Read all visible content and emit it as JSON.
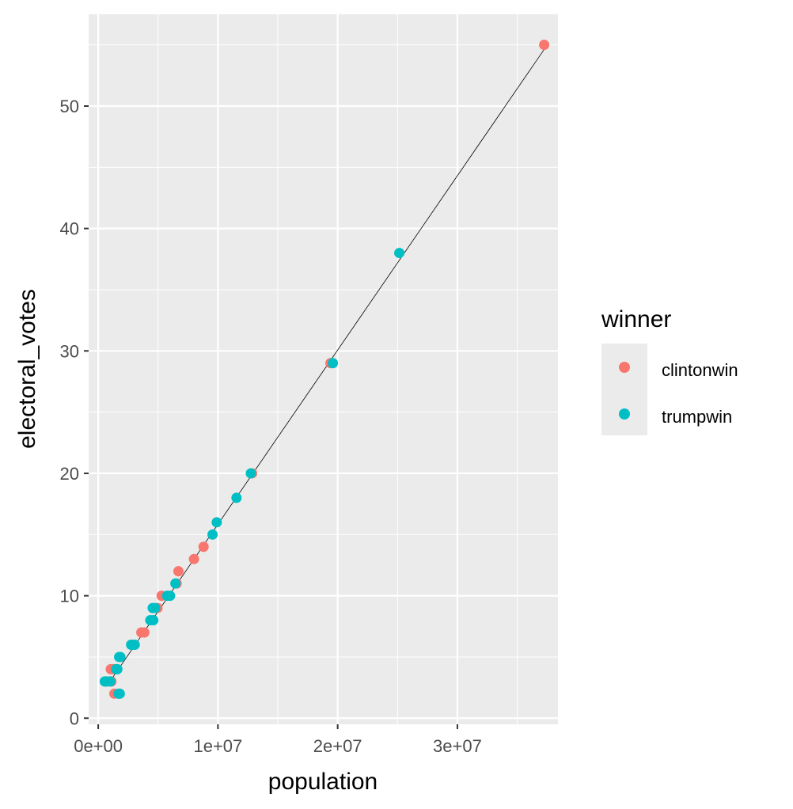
{
  "chart_data": {
    "type": "scatter",
    "xlabel": "population",
    "ylabel": "electoral_votes",
    "xlim": [
      -800000,
      38400000
    ],
    "ylim": [
      -0.5,
      57.5
    ],
    "x_ticks": [
      {
        "value": 0,
        "label": "0e+00"
      },
      {
        "value": 10000000,
        "label": "1e+07"
      },
      {
        "value": 20000000,
        "label": "2e+07"
      },
      {
        "value": 30000000,
        "label": "3e+07"
      }
    ],
    "y_ticks": [
      {
        "value": 0,
        "label": "0"
      },
      {
        "value": 10,
        "label": "10"
      },
      {
        "value": 20,
        "label": "20"
      },
      {
        "value": 30,
        "label": "30"
      },
      {
        "value": 40,
        "label": "40"
      },
      {
        "value": 50,
        "label": "50"
      }
    ],
    "grid": true,
    "legend": {
      "title": "winner",
      "position": "right",
      "entries": [
        {
          "label": "clintonwin",
          "color": "#F8766D"
        },
        {
          "label": "trumpwin",
          "color": "#00BFC4"
        }
      ]
    },
    "fit_line": {
      "x": [
        700000,
        37300000
      ],
      "y": [
        2.6,
        54.7
      ],
      "color": "#000000"
    },
    "series": [
      {
        "name": "clintonwin",
        "color": "#F8766D",
        "points": [
          [
            37250000,
            55
          ],
          [
            19400000,
            29
          ],
          [
            12850000,
            20
          ],
          [
            8800000,
            14
          ],
          [
            8000000,
            13
          ],
          [
            6700000,
            12
          ],
          [
            6550000,
            11
          ],
          [
            5300000,
            10
          ],
          [
            4950000,
            9
          ],
          [
            3850000,
            7
          ],
          [
            3600000,
            7
          ],
          [
            1300000,
            4
          ],
          [
            1050000,
            4
          ],
          [
            1350000,
            2
          ],
          [
            600000,
            3
          ],
          [
            700000,
            3
          ],
          [
            1100000,
            3
          ],
          [
            1750000,
            2
          ]
        ]
      },
      {
        "name": "trumpwin",
        "color": "#00BFC4",
        "points": [
          [
            25150000,
            38
          ],
          [
            19600000,
            29
          ],
          [
            12750000,
            20
          ],
          [
            11550000,
            18
          ],
          [
            9900000,
            16
          ],
          [
            9550000,
            15
          ],
          [
            6450000,
            11
          ],
          [
            6000000,
            10
          ],
          [
            5750000,
            10
          ],
          [
            4750000,
            9
          ],
          [
            4550000,
            9
          ],
          [
            4600000,
            8
          ],
          [
            4350000,
            8
          ],
          [
            3050000,
            6
          ],
          [
            2900000,
            6
          ],
          [
            2750000,
            6
          ],
          [
            1850000,
            5
          ],
          [
            1750000,
            5
          ],
          [
            1500000,
            4
          ],
          [
            550000,
            3
          ],
          [
            700000,
            3
          ],
          [
            1000000,
            3
          ],
          [
            1700000,
            2
          ],
          [
            1800000,
            2
          ],
          [
            1600000,
            4
          ]
        ]
      }
    ]
  }
}
